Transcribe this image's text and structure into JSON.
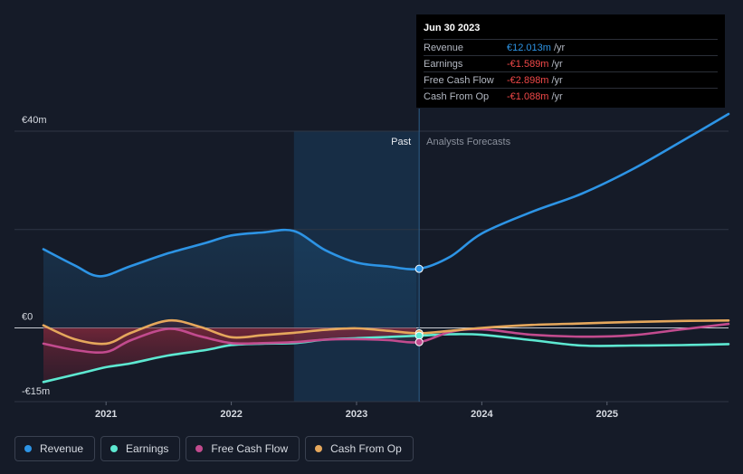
{
  "chart_data": {
    "type": "area",
    "currency": "€",
    "y_labels": [
      {
        "label": "€40m",
        "value": 40
      },
      {
        "label": "€0",
        "value": 0
      },
      {
        "label": "-€15m",
        "value": -15
      }
    ],
    "ylim": [
      -15,
      40
    ],
    "xlim": [
      2020.5,
      2025.97
    ],
    "x_ticks": [
      {
        "label": "2021",
        "value": 2021
      },
      {
        "label": "2022",
        "value": 2022
      },
      {
        "label": "2023",
        "value": 2023
      },
      {
        "label": "2024",
        "value": 2024
      },
      {
        "label": "2025",
        "value": 2025
      }
    ],
    "past_region_start": 2022.5,
    "divider_x": 2023.5,
    "past_label": "Past",
    "forecast_label": "Analysts Forecasts",
    "series": [
      {
        "name": "Revenue",
        "color": "#2d94e5",
        "x": [
          2020.5,
          2020.75,
          2020.95,
          2021.2,
          2021.5,
          2021.8,
          2022.0,
          2022.25,
          2022.5,
          2022.75,
          2023.0,
          2023.25,
          2023.5,
          2023.75,
          2024.0,
          2024.4,
          2024.8,
          2025.2,
          2025.6,
          2025.97
        ],
        "values": [
          16,
          12.7,
          10.5,
          12.6,
          15.2,
          17.3,
          18.8,
          19.4,
          19.7,
          15.8,
          13.3,
          12.5,
          12.013,
          14.5,
          19.2,
          23.6,
          27.3,
          32.2,
          38,
          43.5
        ]
      },
      {
        "name": "Earnings",
        "color": "#5de8d1",
        "x": [
          2020.5,
          2020.8,
          2021.0,
          2021.2,
          2021.5,
          2021.8,
          2022.0,
          2022.25,
          2022.5,
          2022.75,
          2023.0,
          2023.25,
          2023.5,
          2023.75,
          2024.0,
          2024.4,
          2024.8,
          2025.2,
          2025.6,
          2025.97
        ],
        "values": [
          -11,
          -9.2,
          -8,
          -7.2,
          -5.6,
          -4.5,
          -3.5,
          -3.2,
          -3.1,
          -2.4,
          -2.1,
          -1.85,
          -1.589,
          -1.3,
          -1.4,
          -2.5,
          -3.6,
          -3.6,
          -3.5,
          -3.3
        ]
      },
      {
        "name": "Free Cash Flow",
        "color": "#c24b8e",
        "x": [
          2020.5,
          2020.75,
          2021.0,
          2021.2,
          2021.5,
          2021.75,
          2022.0,
          2022.25,
          2022.5,
          2022.75,
          2023.0,
          2023.25,
          2023.5,
          2023.75,
          2024.0,
          2024.4,
          2024.8,
          2025.2,
          2025.6,
          2025.97
        ],
        "values": [
          -3.2,
          -4.5,
          -4.9,
          -2.5,
          -0.2,
          -1.7,
          -3.1,
          -3.1,
          -2.9,
          -2.4,
          -2.3,
          -2.5,
          -2.898,
          -0.8,
          -0.3,
          -1.4,
          -1.8,
          -1.5,
          -0.3,
          0.8
        ]
      },
      {
        "name": "Cash From Op",
        "color": "#e5a75c",
        "x": [
          2020.5,
          2020.75,
          2021.0,
          2021.2,
          2021.5,
          2021.75,
          2022.0,
          2022.25,
          2022.5,
          2022.75,
          2023.0,
          2023.25,
          2023.5,
          2023.75,
          2024.0,
          2024.4,
          2024.8,
          2025.2,
          2025.6,
          2025.97
        ],
        "values": [
          0.5,
          -2.3,
          -3.2,
          -1,
          1.5,
          0.2,
          -1.9,
          -1.5,
          -1,
          -0.4,
          -0.1,
          -0.6,
          -1.088,
          -0.6,
          0,
          0.6,
          0.9,
          1.2,
          1.4,
          1.5
        ]
      }
    ],
    "tooltip": {
      "date": "Jun 30 2023",
      "rows": [
        {
          "label": "Revenue",
          "value": "€12.013m",
          "unit": "/yr",
          "color": "#2d94e5"
        },
        {
          "label": "Earnings",
          "value": "-€1.589m",
          "unit": "/yr",
          "color": "#f04848"
        },
        {
          "label": "Free Cash Flow",
          "value": "-€2.898m",
          "unit": "/yr",
          "color": "#f04848"
        },
        {
          "label": "Cash From Op",
          "value": "-€1.088m",
          "unit": "/yr",
          "color": "#f04848"
        }
      ]
    }
  },
  "legend": [
    {
      "label": "Revenue",
      "color": "#2d94e5"
    },
    {
      "label": "Earnings",
      "color": "#5de8d1"
    },
    {
      "label": "Free Cash Flow",
      "color": "#c24b8e"
    },
    {
      "label": "Cash From Op",
      "color": "#e5a75c"
    }
  ]
}
